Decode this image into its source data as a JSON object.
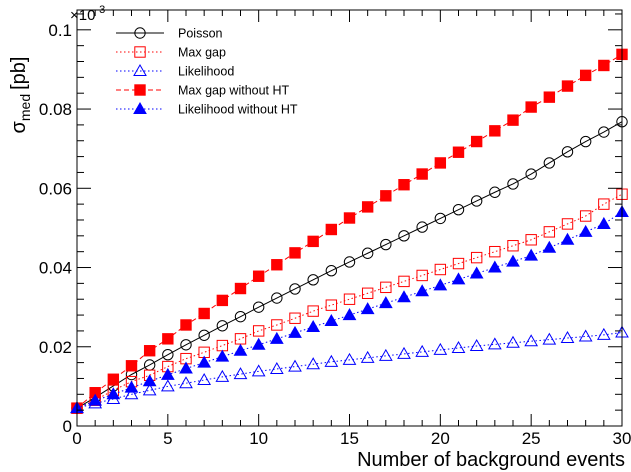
{
  "chart_data": {
    "type": "line",
    "xlabel": "Number of background events",
    "ylabel": "σ",
    "ylabel_sub": "med",
    "ylabel_unit": "[pb]",
    "y_multiplier": "×10",
    "y_multiplier_exp": "-3",
    "xlim": [
      0,
      30
    ],
    "ylim": [
      0,
      0.105
    ],
    "grid": false,
    "legend_position": "top-left",
    "x_ticks": [
      0,
      5,
      10,
      15,
      20,
      25,
      30
    ],
    "x_tick_labels": [
      "0",
      "5",
      "10",
      "15",
      "20",
      "25",
      "30"
    ],
    "y_ticks": [
      0,
      0.02,
      0.04,
      0.06,
      0.08,
      0.1
    ],
    "y_tick_labels": [
      "0",
      "0.02",
      "0.04",
      "0.06",
      "0.08",
      "0.1"
    ],
    "x": [
      0,
      1,
      2,
      3,
      4,
      5,
      6,
      7,
      8,
      9,
      10,
      11,
      12,
      13,
      14,
      15,
      16,
      17,
      18,
      19,
      20,
      21,
      22,
      23,
      24,
      25,
      26,
      27,
      28,
      29,
      30
    ],
    "series": [
      {
        "name": "Poisson",
        "color": "#000000",
        "marker": "open-circle",
        "line_style": "solid",
        "values": [
          0.0045,
          0.0072,
          0.0101,
          0.013,
          0.0154,
          0.018,
          0.0205,
          0.0229,
          0.0253,
          0.0276,
          0.03,
          0.0323,
          0.0346,
          0.0369,
          0.0392,
          0.0414,
          0.0436,
          0.0458,
          0.048,
          0.0502,
          0.0524,
          0.0546,
          0.0568,
          0.059,
          0.0611,
          0.0636,
          0.0664,
          0.0692,
          0.0718,
          0.0742,
          0.0768
        ]
      },
      {
        "name": "Max gap",
        "color": "#ff0000",
        "marker": "open-square",
        "line_style": "dotted",
        "values": [
          0.0045,
          0.0065,
          0.009,
          0.0112,
          0.0128,
          0.015,
          0.017,
          0.0186,
          0.0203,
          0.022,
          0.024,
          0.0255,
          0.0272,
          0.029,
          0.0305,
          0.032,
          0.0335,
          0.035,
          0.0365,
          0.038,
          0.0395,
          0.041,
          0.0425,
          0.044,
          0.0455,
          0.047,
          0.049,
          0.051,
          0.053,
          0.056,
          0.0585
        ]
      },
      {
        "name": "Likelihood",
        "color": "#0000ff",
        "marker": "open-triangle",
        "line_style": "dotted",
        "values": [
          0.0045,
          0.0057,
          0.0068,
          0.008,
          0.009,
          0.01,
          0.0108,
          0.0116,
          0.0124,
          0.0131,
          0.0138,
          0.0144,
          0.015,
          0.0156,
          0.0162,
          0.0167,
          0.0172,
          0.0177,
          0.0182,
          0.0187,
          0.0192,
          0.0197,
          0.0202,
          0.0206,
          0.021,
          0.0214,
          0.0218,
          0.0222,
          0.0226,
          0.023,
          0.0236
        ]
      },
      {
        "name": "Max gap without HT",
        "color": "#ff0000",
        "marker": "filled-square",
        "line_style": "dashed",
        "values": [
          0.0045,
          0.0084,
          0.0118,
          0.0152,
          0.019,
          0.022,
          0.0255,
          0.0284,
          0.0317,
          0.0347,
          0.0378,
          0.0407,
          0.0437,
          0.0466,
          0.0496,
          0.0525,
          0.0553,
          0.0581,
          0.0609,
          0.0636,
          0.0664,
          0.0691,
          0.0718,
          0.0745,
          0.0772,
          0.0805,
          0.083,
          0.0858,
          0.0885,
          0.091,
          0.0938
        ]
      },
      {
        "name": "Likelihood without HT",
        "color": "#0000ff",
        "marker": "filled-triangle",
        "line_style": "dotted",
        "values": [
          0.0045,
          0.0064,
          0.008,
          0.0097,
          0.0113,
          0.0129,
          0.0145,
          0.016,
          0.0175,
          0.019,
          0.0205,
          0.022,
          0.0235,
          0.025,
          0.0265,
          0.028,
          0.0295,
          0.031,
          0.0325,
          0.034,
          0.0355,
          0.037,
          0.0385,
          0.04,
          0.0415,
          0.043,
          0.045,
          0.047,
          0.049,
          0.051,
          0.054
        ]
      }
    ]
  }
}
